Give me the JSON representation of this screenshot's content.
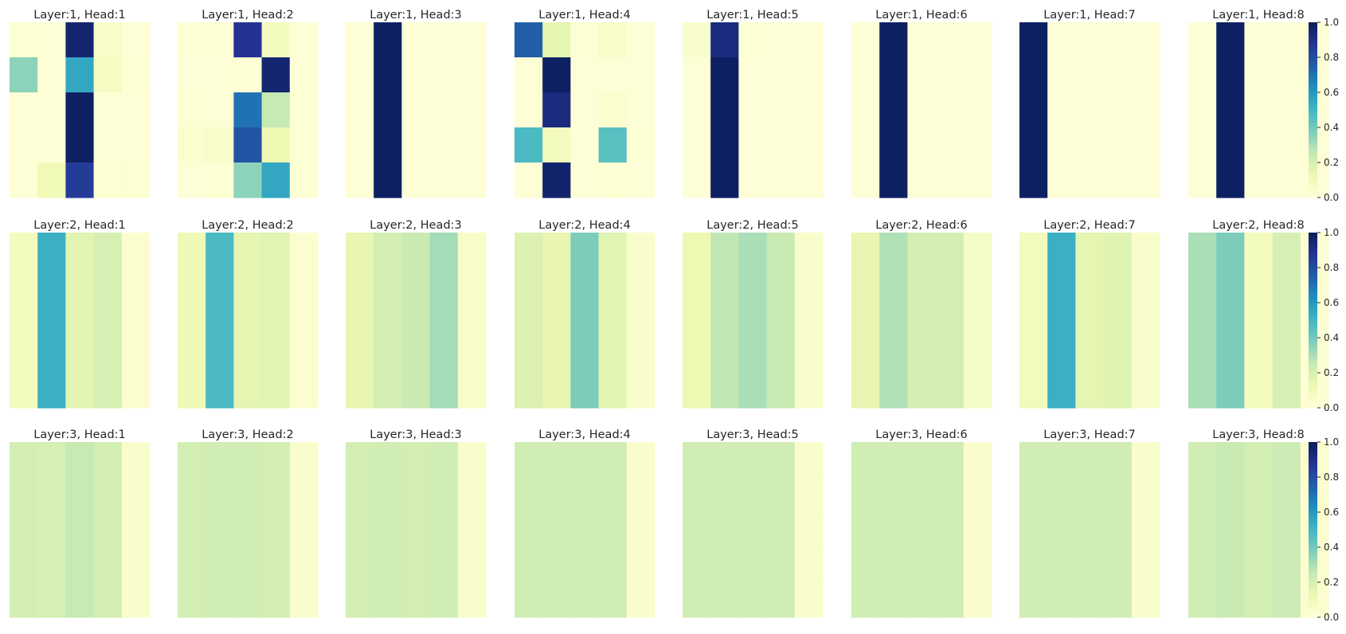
{
  "chart_data": {
    "type": "heatmap",
    "colormap": "YlGnBu",
    "colormap_stops": [
      "#ffffd9",
      "#edf8b1",
      "#c7e9b4",
      "#7fcdbb",
      "#41b6c4",
      "#1d91c0",
      "#225ea8",
      "#253494",
      "#081d58"
    ],
    "value_range": [
      0,
      1
    ],
    "colorbar_ticks": [
      "0.0",
      "0.2",
      "0.4",
      "0.6",
      "0.8",
      "1.0"
    ],
    "grid_rows": 5,
    "grid_cols": 5,
    "panels": [
      {
        "title": "Layer:1, Head:1",
        "values": [
          [
            0.02,
            0.01,
            0.95,
            0.05,
            0.01
          ],
          [
            0.35,
            0.01,
            0.55,
            0.07,
            0.02
          ],
          [
            0.01,
            0.01,
            0.98,
            0.01,
            0.01
          ],
          [
            0.01,
            0.01,
            0.98,
            0.01,
            0.01
          ],
          [
            0.01,
            0.1,
            0.85,
            0.02,
            0.02
          ]
        ]
      },
      {
        "title": "Layer:1, Head:2",
        "values": [
          [
            0.02,
            0.02,
            0.88,
            0.08,
            0.01
          ],
          [
            0.01,
            0.01,
            0.02,
            0.95,
            0.01
          ],
          [
            0.02,
            0.01,
            0.7,
            0.25,
            0.02
          ],
          [
            0.03,
            0.05,
            0.78,
            0.12,
            0.02
          ],
          [
            0.01,
            0.02,
            0.35,
            0.55,
            0.02
          ]
        ]
      },
      {
        "title": "Layer:1, Head:3",
        "values": [
          [
            0.01,
            0.98,
            0.01,
            0.01,
            0.01
          ],
          [
            0.01,
            0.98,
            0.01,
            0.01,
            0.01
          ],
          [
            0.01,
            0.98,
            0.01,
            0.01,
            0.01
          ],
          [
            0.01,
            0.98,
            0.01,
            0.01,
            0.01
          ],
          [
            0.01,
            0.98,
            0.01,
            0.01,
            0.01
          ]
        ]
      },
      {
        "title": "Layer:1, Head:4",
        "values": [
          [
            0.75,
            0.15,
            0.02,
            0.05,
            0.01
          ],
          [
            0.01,
            0.98,
            0.01,
            0.01,
            0.01
          ],
          [
            0.01,
            0.92,
            0.01,
            0.03,
            0.01
          ],
          [
            0.48,
            0.08,
            0.01,
            0.45,
            0.02
          ],
          [
            0.01,
            0.96,
            0.01,
            0.02,
            0.01
          ]
        ]
      },
      {
        "title": "Layer:1, Head:5",
        "values": [
          [
            0.04,
            0.92,
            0.02,
            0.01,
            0.01
          ],
          [
            0.01,
            0.98,
            0.01,
            0.01,
            0.01
          ],
          [
            0.01,
            0.98,
            0.01,
            0.01,
            0.01
          ],
          [
            0.01,
            0.98,
            0.01,
            0.01,
            0.01
          ],
          [
            0.01,
            0.98,
            0.01,
            0.01,
            0.01
          ]
        ]
      },
      {
        "title": "Layer:1, Head:6",
        "values": [
          [
            0.01,
            0.98,
            0.01,
            0.01,
            0.01
          ],
          [
            0.01,
            0.98,
            0.01,
            0.01,
            0.01
          ],
          [
            0.01,
            0.98,
            0.01,
            0.01,
            0.01
          ],
          [
            0.01,
            0.98,
            0.01,
            0.01,
            0.01
          ],
          [
            0.01,
            0.98,
            0.01,
            0.01,
            0.01
          ]
        ]
      },
      {
        "title": "Layer:1, Head:7",
        "values": [
          [
            0.98,
            0.01,
            0.01,
            0.01,
            0.01
          ],
          [
            0.98,
            0.01,
            0.01,
            0.01,
            0.01
          ],
          [
            0.98,
            0.01,
            0.01,
            0.01,
            0.01
          ],
          [
            0.98,
            0.01,
            0.01,
            0.01,
            0.01
          ],
          [
            0.98,
            0.01,
            0.01,
            0.01,
            0.01
          ]
        ]
      },
      {
        "title": "Layer:1, Head:8",
        "values": [
          [
            0.01,
            0.98,
            0.01,
            0.01,
            0.01
          ],
          [
            0.01,
            0.98,
            0.01,
            0.01,
            0.01
          ],
          [
            0.01,
            0.98,
            0.01,
            0.01,
            0.01
          ],
          [
            0.01,
            0.98,
            0.01,
            0.01,
            0.01
          ],
          [
            0.01,
            0.98,
            0.01,
            0.01,
            0.01
          ]
        ]
      },
      {
        "title": "Layer:2, Head:1",
        "values": [
          [
            0.08,
            0.52,
            0.16,
            0.2,
            0.03
          ],
          [
            0.08,
            0.52,
            0.16,
            0.2,
            0.03
          ],
          [
            0.08,
            0.52,
            0.16,
            0.2,
            0.03
          ],
          [
            0.08,
            0.52,
            0.16,
            0.2,
            0.03
          ],
          [
            0.08,
            0.52,
            0.16,
            0.2,
            0.03
          ]
        ]
      },
      {
        "title": "Layer:2, Head:2",
        "values": [
          [
            0.11,
            0.48,
            0.15,
            0.16,
            0.03
          ],
          [
            0.11,
            0.48,
            0.15,
            0.16,
            0.03
          ],
          [
            0.11,
            0.48,
            0.15,
            0.16,
            0.03
          ],
          [
            0.11,
            0.48,
            0.15,
            0.16,
            0.03
          ],
          [
            0.11,
            0.48,
            0.15,
            0.16,
            0.03
          ]
        ]
      },
      {
        "title": "Layer:2, Head:3",
        "values": [
          [
            0.14,
            0.21,
            0.24,
            0.31,
            0.05
          ],
          [
            0.14,
            0.21,
            0.24,
            0.31,
            0.05
          ],
          [
            0.14,
            0.21,
            0.24,
            0.31,
            0.05
          ],
          [
            0.14,
            0.21,
            0.24,
            0.31,
            0.05
          ],
          [
            0.14,
            0.21,
            0.24,
            0.31,
            0.05
          ]
        ]
      },
      {
        "title": "Layer:2, Head:4",
        "values": [
          [
            0.18,
            0.14,
            0.38,
            0.16,
            0.04
          ],
          [
            0.18,
            0.14,
            0.38,
            0.16,
            0.04
          ],
          [
            0.18,
            0.14,
            0.38,
            0.16,
            0.04
          ],
          [
            0.18,
            0.14,
            0.38,
            0.16,
            0.04
          ],
          [
            0.18,
            0.14,
            0.38,
            0.16,
            0.04
          ]
        ]
      },
      {
        "title": "Layer:2, Head:5",
        "values": [
          [
            0.12,
            0.26,
            0.3,
            0.24,
            0.04
          ],
          [
            0.12,
            0.26,
            0.3,
            0.24,
            0.04
          ],
          [
            0.12,
            0.26,
            0.3,
            0.24,
            0.04
          ],
          [
            0.12,
            0.26,
            0.3,
            0.24,
            0.04
          ],
          [
            0.12,
            0.26,
            0.3,
            0.24,
            0.04
          ]
        ]
      },
      {
        "title": "Layer:2, Head:6",
        "values": [
          [
            0.14,
            0.29,
            0.21,
            0.21,
            0.06
          ],
          [
            0.14,
            0.29,
            0.21,
            0.21,
            0.06
          ],
          [
            0.14,
            0.29,
            0.21,
            0.21,
            0.06
          ],
          [
            0.14,
            0.29,
            0.21,
            0.21,
            0.06
          ],
          [
            0.14,
            0.29,
            0.21,
            0.21,
            0.06
          ]
        ]
      },
      {
        "title": "Layer:2, Head:7",
        "values": [
          [
            0.09,
            0.52,
            0.15,
            0.17,
            0.04
          ],
          [
            0.09,
            0.52,
            0.15,
            0.17,
            0.04
          ],
          [
            0.09,
            0.52,
            0.15,
            0.17,
            0.04
          ],
          [
            0.09,
            0.52,
            0.15,
            0.17,
            0.04
          ],
          [
            0.09,
            0.52,
            0.15,
            0.17,
            0.04
          ]
        ]
      },
      {
        "title": "Layer:2, Head:8",
        "values": [
          [
            0.3,
            0.38,
            0.08,
            0.2,
            0.02
          ],
          [
            0.3,
            0.38,
            0.08,
            0.2,
            0.02
          ],
          [
            0.3,
            0.38,
            0.08,
            0.2,
            0.02
          ],
          [
            0.3,
            0.38,
            0.08,
            0.2,
            0.02
          ],
          [
            0.3,
            0.38,
            0.08,
            0.2,
            0.02
          ]
        ]
      },
      {
        "title": "Layer:3, Head:1",
        "values": [
          [
            0.21,
            0.2,
            0.25,
            0.21,
            0.04
          ],
          [
            0.21,
            0.2,
            0.25,
            0.21,
            0.04
          ],
          [
            0.21,
            0.2,
            0.25,
            0.21,
            0.04
          ],
          [
            0.21,
            0.2,
            0.25,
            0.21,
            0.04
          ],
          [
            0.21,
            0.2,
            0.25,
            0.21,
            0.04
          ]
        ]
      },
      {
        "title": "Layer:3, Head:2",
        "values": [
          [
            0.21,
            0.22,
            0.22,
            0.21,
            0.04
          ],
          [
            0.21,
            0.22,
            0.22,
            0.21,
            0.04
          ],
          [
            0.21,
            0.22,
            0.22,
            0.21,
            0.04
          ],
          [
            0.21,
            0.22,
            0.22,
            0.21,
            0.04
          ],
          [
            0.21,
            0.22,
            0.22,
            0.21,
            0.04
          ]
        ]
      },
      {
        "title": "Layer:3, Head:3",
        "values": [
          [
            0.21,
            0.22,
            0.21,
            0.22,
            0.04
          ],
          [
            0.21,
            0.22,
            0.21,
            0.22,
            0.04
          ],
          [
            0.21,
            0.22,
            0.21,
            0.22,
            0.04
          ],
          [
            0.21,
            0.22,
            0.21,
            0.22,
            0.04
          ],
          [
            0.21,
            0.22,
            0.21,
            0.22,
            0.04
          ]
        ]
      },
      {
        "title": "Layer:3, Head:4",
        "values": [
          [
            0.22,
            0.22,
            0.22,
            0.22,
            0.04
          ],
          [
            0.22,
            0.22,
            0.22,
            0.22,
            0.04
          ],
          [
            0.22,
            0.22,
            0.22,
            0.22,
            0.04
          ],
          [
            0.22,
            0.22,
            0.22,
            0.22,
            0.04
          ],
          [
            0.22,
            0.22,
            0.22,
            0.22,
            0.04
          ]
        ]
      },
      {
        "title": "Layer:3, Head:5",
        "values": [
          [
            0.22,
            0.22,
            0.22,
            0.22,
            0.04
          ],
          [
            0.22,
            0.22,
            0.22,
            0.22,
            0.04
          ],
          [
            0.22,
            0.22,
            0.22,
            0.22,
            0.04
          ],
          [
            0.22,
            0.22,
            0.22,
            0.22,
            0.04
          ],
          [
            0.22,
            0.22,
            0.22,
            0.22,
            0.04
          ]
        ]
      },
      {
        "title": "Layer:3, Head:6",
        "values": [
          [
            0.22,
            0.22,
            0.22,
            0.22,
            0.04
          ],
          [
            0.22,
            0.22,
            0.22,
            0.22,
            0.04
          ],
          [
            0.22,
            0.22,
            0.22,
            0.22,
            0.04
          ],
          [
            0.22,
            0.22,
            0.22,
            0.22,
            0.04
          ],
          [
            0.22,
            0.22,
            0.22,
            0.22,
            0.04
          ]
        ]
      },
      {
        "title": "Layer:3, Head:7",
        "values": [
          [
            0.22,
            0.22,
            0.22,
            0.22,
            0.04
          ],
          [
            0.22,
            0.22,
            0.22,
            0.22,
            0.04
          ],
          [
            0.22,
            0.22,
            0.22,
            0.22,
            0.04
          ],
          [
            0.22,
            0.22,
            0.22,
            0.22,
            0.04
          ],
          [
            0.22,
            0.22,
            0.22,
            0.22,
            0.04
          ]
        ]
      },
      {
        "title": "Layer:3, Head:8",
        "values": [
          [
            0.22,
            0.24,
            0.21,
            0.23,
            0.03
          ],
          [
            0.22,
            0.24,
            0.21,
            0.23,
            0.03
          ],
          [
            0.22,
            0.24,
            0.21,
            0.23,
            0.03
          ],
          [
            0.22,
            0.24,
            0.21,
            0.23,
            0.03
          ],
          [
            0.22,
            0.24,
            0.21,
            0.23,
            0.03
          ]
        ]
      }
    ]
  }
}
